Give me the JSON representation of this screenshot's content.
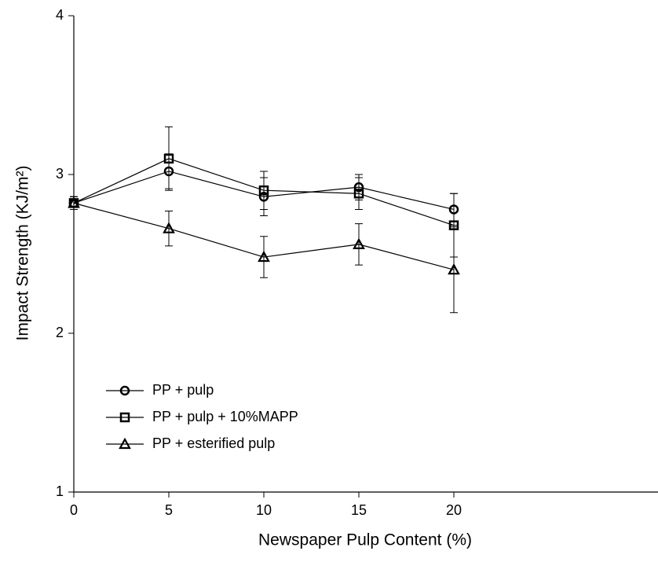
{
  "chart_data": {
    "type": "line",
    "x_label": "Newspaper Pulp Content (%)",
    "y_label": "Impact Strength (KJ/m²)",
    "x": [
      0,
      5,
      10,
      15,
      20
    ],
    "series": [
      {
        "name": "PP + pulp",
        "marker": "circle",
        "color": "#000000",
        "values": [
          2.82,
          3.02,
          2.86,
          2.92,
          2.78
        ],
        "errors": [
          0.04,
          0.11,
          0.12,
          0.08,
          0.1
        ]
      },
      {
        "name": "PP + pulp + 10%MAPP",
        "marker": "square",
        "color": "#000000",
        "values": [
          2.82,
          3.1,
          2.9,
          2.88,
          2.68
        ],
        "errors": [
          0.04,
          0.2,
          0.12,
          0.1,
          0.2
        ]
      },
      {
        "name": "PP + esterified pulp",
        "marker": "triangle",
        "color": "#000000",
        "values": [
          2.82,
          2.66,
          2.48,
          2.56,
          2.4
        ],
        "errors": [
          0.04,
          0.11,
          0.13,
          0.13,
          0.27
        ]
      }
    ],
    "xlim": [
      0,
      30
    ],
    "xticks": [
      0,
      5,
      10,
      15,
      20
    ],
    "ylim": [
      1,
      4
    ],
    "yticks": [
      1,
      2,
      3,
      4
    ],
    "legend": "lower left"
  }
}
